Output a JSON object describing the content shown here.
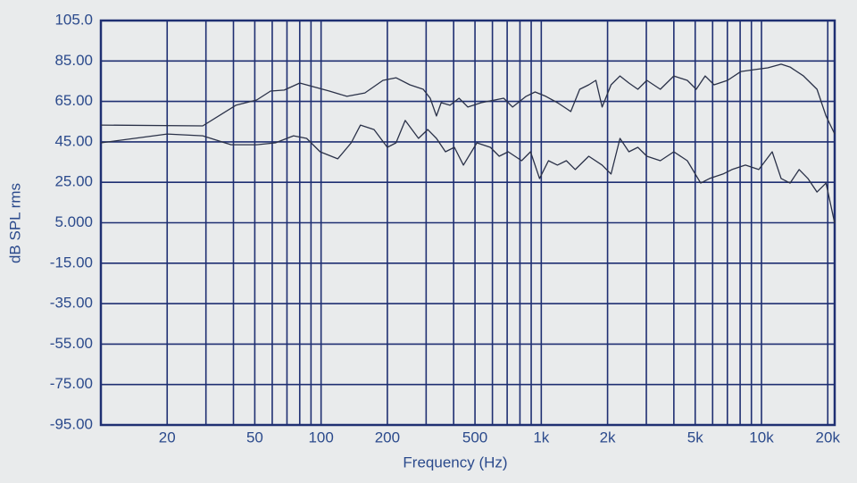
{
  "chart_data": {
    "type": "line",
    "x_label": "Frequency (Hz)",
    "y_label": "dB SPL rms",
    "x_scale": "log",
    "grid": true,
    "xlim": [
      10,
      21500
    ],
    "ylim": [
      -95,
      105
    ],
    "xticks": [
      20,
      50,
      100,
      200,
      500,
      {
        "value": 1000,
        "label": "1k"
      },
      {
        "value": 2000,
        "label": "2k"
      },
      {
        "value": 5000,
        "label": "5k"
      },
      {
        "value": 10000,
        "label": "10k"
      },
      {
        "value": 20000,
        "label": "20k"
      }
    ],
    "x_grid_lines": [
      20,
      30,
      40,
      50,
      60,
      70,
      80,
      90,
      100,
      200,
      300,
      400,
      500,
      600,
      700,
      800,
      900,
      1000,
      2000,
      3000,
      4000,
      5000,
      6000,
      7000,
      8000,
      9000,
      10000,
      20000
    ],
    "yticks": [
      {
        "value": 105,
        "label": "105.0"
      },
      {
        "value": 85,
        "label": "85.00"
      },
      {
        "value": 65,
        "label": "65.00"
      },
      {
        "value": 45,
        "label": "45.00"
      },
      {
        "value": 25,
        "label": "25.00"
      },
      {
        "value": 5,
        "label": "5.000"
      },
      {
        "value": -15,
        "label": "-15.00"
      },
      {
        "value": -35,
        "label": "-35.00"
      },
      {
        "value": -55,
        "label": "-55.00"
      },
      {
        "value": -75,
        "label": "-75.00"
      },
      {
        "value": -95,
        "label": "-95.00"
      }
    ],
    "axis_color": "#1f2f72",
    "series": [
      {
        "color": "#2a3148",
        "x": [
          10,
          29,
          41,
          51,
          59,
          68,
          80,
          95,
          109,
          131,
          158,
          191,
          219,
          253,
          291,
          313,
          334,
          351,
          385,
          423,
          464,
          534,
          615,
          675,
          741,
          853,
          937,
          1048,
          1184,
          1362,
          1495,
          1642,
          1770,
          1890,
          2075,
          2278,
          2501,
          2746,
          3015,
          3473,
          3999,
          4605,
          5054,
          5548,
          6092,
          7011,
          8069,
          9283,
          10672,
          12275,
          13478,
          15525,
          17864,
          19634,
          21500
        ],
        "values": [
          53.3,
          52.9,
          63.1,
          65.7,
          70.1,
          70.6,
          74.1,
          71.9,
          70.1,
          67.5,
          69.2,
          75.4,
          76.7,
          73.2,
          71.0,
          66.6,
          57.8,
          64.4,
          63.1,
          66.6,
          62.2,
          64.4,
          65.7,
          66.6,
          62.2,
          67.5,
          69.7,
          67.5,
          64.4,
          60.0,
          71.0,
          73.2,
          75.4,
          62.2,
          73.2,
          77.6,
          74.1,
          71.0,
          75.4,
          71.0,
          77.6,
          75.4,
          71.0,
          77.6,
          73.2,
          75.4,
          79.8,
          80.7,
          81.6,
          83.4,
          82.0,
          77.6,
          71.0,
          57.8,
          48.9
        ]
      },
      {
        "color": "#2a3148",
        "x": [
          10,
          20,
          29,
          39,
          51,
          62,
          75,
          86,
          99,
          119,
          137,
          151,
          174,
          200,
          219,
          241,
          277,
          305,
          334,
          367,
          403,
          443,
          510,
          587,
          644,
          708,
          814,
          894,
          982,
          1078,
          1184,
          1300,
          1427,
          1642,
          1890,
          2075,
          2278,
          2501,
          2746,
          3015,
          3473,
          3999,
          4605,
          5297,
          5814,
          6689,
          7345,
          8455,
          9726,
          11186,
          12275,
          13478,
          14824,
          16255,
          17864,
          19634,
          21500
        ],
        "values": [
          44.5,
          48.9,
          48.0,
          43.6,
          43.6,
          44.5,
          48.0,
          46.7,
          40.1,
          36.6,
          44.5,
          53.3,
          51.1,
          42.3,
          44.5,
          55.6,
          46.7,
          51.1,
          46.7,
          40.1,
          42.3,
          33.5,
          44.5,
          42.3,
          37.9,
          40.1,
          35.7,
          40.1,
          26.9,
          35.7,
          33.5,
          35.7,
          31.3,
          37.9,
          33.5,
          29.1,
          46.7,
          40.1,
          42.3,
          37.9,
          35.7,
          40.1,
          35.7,
          24.6,
          26.9,
          29.1,
          31.3,
          33.5,
          31.3,
          40.1,
          26.9,
          24.6,
          31.3,
          26.9,
          20.2,
          24.6,
          4.8
        ]
      }
    ]
  }
}
